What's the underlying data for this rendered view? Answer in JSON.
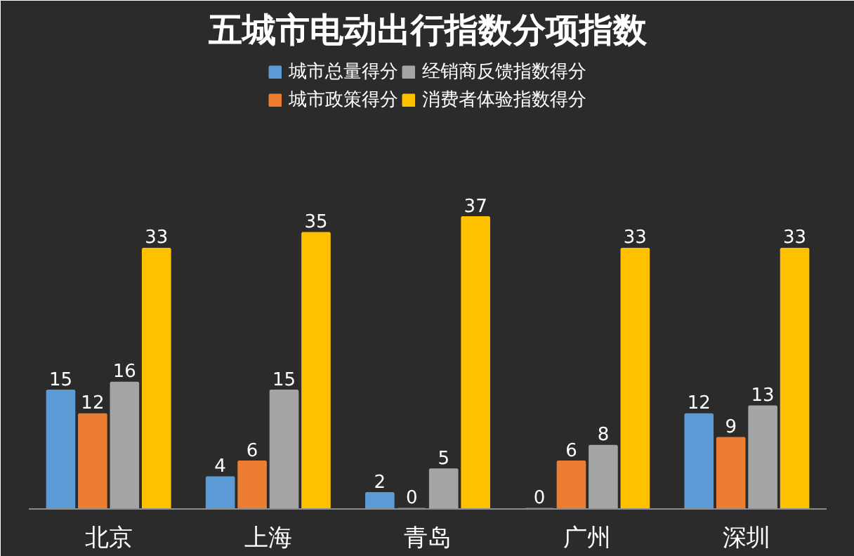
{
  "chart_data": {
    "type": "bar",
    "title": "五城市电动出行指数分项指数",
    "categories": [
      "北京",
      "上海",
      "青岛",
      "广州",
      "深圳"
    ],
    "series": [
      {
        "name": "城市总量得分",
        "color": "#5b9bd5",
        "values": [
          15,
          4,
          2,
          0,
          12
        ]
      },
      {
        "name": "城市政策得分",
        "color": "#ed7d31",
        "values": [
          12,
          6,
          0,
          6,
          9
        ]
      },
      {
        "name": "经销商反馈指数得分",
        "color": "#a5a5a5",
        "values": [
          16,
          15,
          5,
          8,
          13
        ]
      },
      {
        "name": "消费者体验指数得分",
        "color": "#ffc000",
        "values": [
          33,
          35,
          37,
          33,
          33
        ]
      }
    ],
    "data_labels": true,
    "legend": "top",
    "grid": false,
    "tick_labels": "x"
  }
}
